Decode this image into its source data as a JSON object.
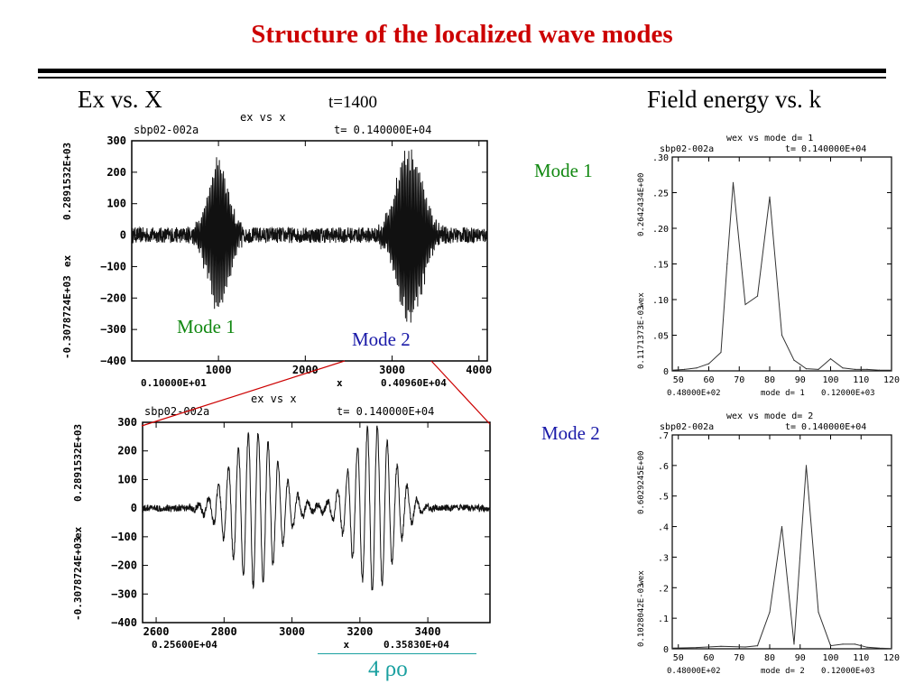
{
  "slide": {
    "title": "Structure of the localized wave modes",
    "left_heading": "Ex vs. X",
    "time_label": "t=1400",
    "right_heading": "Field energy vs. k",
    "scale_label": "4 ρo"
  },
  "chart_data": [
    {
      "id": "ex-full",
      "type": "line",
      "title": "ex vs x",
      "run_label": "sbp02-002a",
      "time_text": "t=  0.140000E+04",
      "xlabel": "x",
      "ylabel": "ex",
      "ymax_text": "0.2891532E+03",
      "ymin_text": "-0.3078724E+03",
      "xmin_text": "0.10000E+01",
      "xmax_text": "0.40960E+04",
      "xlim": [
        1,
        4096
      ],
      "ylim": [
        -400,
        300
      ],
      "xticks": [
        1000,
        2000,
        3000,
        4000
      ],
      "yticks": [
        300,
        200,
        100,
        0,
        -100,
        -200,
        -300,
        -400
      ],
      "annotations": [
        "Mode 1",
        "Mode 2"
      ],
      "packets": [
        {
          "center": 1000,
          "width": 170,
          "k": 0.4,
          "amp": 230
        },
        {
          "center": 3200,
          "width": 210,
          "k": 0.4,
          "amp": 265
        }
      ],
      "noise_amp": 25
    },
    {
      "id": "ex-zoom",
      "type": "line",
      "title": "ex vs x",
      "run_label": "sbp02-002a",
      "time_text": "t=  0.140000E+04",
      "xlabel": "x",
      "ylabel": "ex",
      "ymax_text": "0.2891532E+03",
      "ymin_text": "-0.3078724E+03",
      "xmin_text": "0.25600E+04",
      "xmax_text": "0.35830E+04",
      "xlim": [
        2560,
        3583
      ],
      "ylim": [
        -400,
        300
      ],
      "xticks": [
        2600,
        2800,
        3000,
        3200,
        3400
      ],
      "yticks": [
        300,
        200,
        100,
        0,
        -100,
        -200,
        -300,
        -400
      ],
      "packets": [
        {
          "center": 2890,
          "width": 95,
          "k": 0.215,
          "amp": 270
        },
        {
          "center": 3240,
          "width": 85,
          "k": 0.215,
          "amp": 290
        }
      ],
      "noise_amp": 12
    },
    {
      "id": "wex-mode1",
      "type": "line",
      "title": "wex vs mode d= 1",
      "run_label": "sbp02-002a",
      "time_text": "t= 0.140000E+04",
      "xlabel": "mode d= 1",
      "ylabel": "wex",
      "ymax_text": "0.2642434E+00",
      "ymin_text": "0.1171373E-03",
      "xmin_text": "0.48000E+02",
      "xmax_text": "0.12000E+03",
      "xlim": [
        48,
        120
      ],
      "ylim": [
        0,
        0.3
      ],
      "xticks": [
        50,
        60,
        70,
        80,
        90,
        100,
        110,
        120
      ],
      "yticks": [
        ".30",
        ".25",
        ".20",
        ".15",
        ".10",
        ".05",
        "0"
      ],
      "annotation": "Mode 1",
      "x": [
        48,
        52,
        56,
        60,
        64,
        66,
        68,
        72,
        76,
        80,
        84,
        88,
        92,
        96,
        100,
        104,
        108,
        112,
        116,
        120
      ],
      "y": [
        0.001,
        0.002,
        0.004,
        0.01,
        0.026,
        0.15,
        0.264,
        0.093,
        0.105,
        0.244,
        0.05,
        0.015,
        0.003,
        0.002,
        0.017,
        0.004,
        0.002,
        0.002,
        0.001,
        0.001
      ]
    },
    {
      "id": "wex-mode2",
      "type": "line",
      "title": "wex vs mode d= 2",
      "run_label": "sbp02-002a",
      "time_text": "t= 0.140000E+04",
      "xlabel": "mode d= 2",
      "ylabel": "wex",
      "ymax_text": "0.6029245E+00",
      "ymin_text": "0.1028042E-03",
      "xmin_text": "0.48000E+02",
      "xmax_text": "0.12000E+03",
      "xlim": [
        48,
        120
      ],
      "ylim": [
        0,
        0.7
      ],
      "xticks": [
        50,
        60,
        70,
        80,
        90,
        100,
        110,
        120
      ],
      "yticks": [
        ".7",
        ".6",
        ".5",
        ".4",
        ".3",
        ".2",
        ".1",
        "0"
      ],
      "annotation": "Mode 2",
      "x": [
        48,
        56,
        64,
        72,
        76,
        80,
        84,
        88,
        92,
        96,
        100,
        104,
        108,
        112,
        116,
        120
      ],
      "y": [
        0.002,
        0.004,
        0.008,
        0.006,
        0.01,
        0.12,
        0.4,
        0.015,
        0.6,
        0.12,
        0.01,
        0.015,
        0.015,
        0.005,
        0.002,
        0.001
      ]
    }
  ],
  "colors": {
    "title": "#cc0000",
    "mode_green": "#118811",
    "mode_blue": "#1a1aa8",
    "rho": "#1aa0a0",
    "zoom_lines": "#cc0000"
  }
}
